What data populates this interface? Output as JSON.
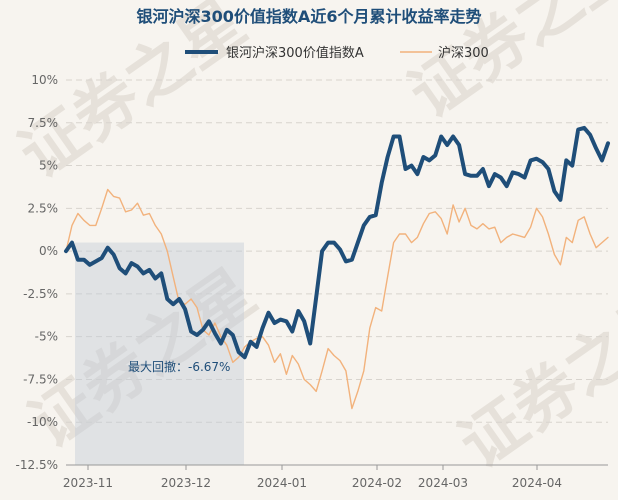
{
  "chart_data": {
    "type": "line",
    "title": "银河沪深300价值指数A近6个月累计收益率走势",
    "watermark": "证券之星",
    "x_tick_labels": [
      "2023-11",
      "2023-12",
      "2024-01",
      "2024-02",
      "2024-03",
      "2024-04"
    ],
    "y_tick_labels": [
      "10%",
      "7.5%",
      "5%",
      "2.5%",
      "0%",
      "-2.5%",
      "-5%",
      "-7.5%",
      "-10%",
      "-12.5%"
    ],
    "ylim": [
      -12.5,
      10
    ],
    "grid": true,
    "legend_position": "top",
    "max_drawdown_label": "最大回撤：-6.67%",
    "series": [
      {
        "name": "银河沪深300价值指数A",
        "color": "#1f4e79",
        "values": [
          0,
          0.5,
          -0.5,
          -0.5,
          -0.8,
          -0.6,
          -0.4,
          0.2,
          -0.2,
          -1.0,
          -1.3,
          -0.7,
          -0.9,
          -1.3,
          -1.1,
          -1.6,
          -1.3,
          -2.8,
          -3.1,
          -2.8,
          -3.4,
          -4.7,
          -4.9,
          -4.6,
          -4.1,
          -4.8,
          -5.4,
          -4.6,
          -4.9,
          -5.9,
          -6.2,
          -5.3,
          -5.6,
          -4.5,
          -3.6,
          -4.2,
          -4.0,
          -4.1,
          -4.7,
          -3.5,
          -4.1,
          -5.4,
          -2.7,
          0.0,
          0.5,
          0.5,
          0.1,
          -0.6,
          -0.5,
          0.5,
          1.5,
          2.0,
          2.1,
          4.0,
          5.5,
          6.7,
          6.7,
          4.8,
          5.0,
          4.5,
          5.5,
          5.3,
          5.6,
          6.7,
          6.2,
          6.7,
          6.2,
          4.5,
          4.4,
          4.4,
          4.8,
          3.8,
          4.5,
          4.3,
          3.8,
          4.6,
          4.5,
          4.3,
          5.3,
          5.4,
          5.2,
          4.8,
          3.5,
          3.0,
          5.3,
          5.0,
          7.1,
          7.2,
          6.8,
          6.0,
          5.3,
          6.3
        ]
      },
      {
        "name": "沪深300",
        "color": "#f2b27c",
        "values": [
          0,
          1.5,
          2.2,
          1.8,
          1.5,
          1.5,
          2.5,
          3.6,
          3.2,
          3.1,
          2.3,
          2.4,
          2.8,
          2.1,
          2.2,
          1.5,
          1.0,
          0.0,
          -1.5,
          -3.0,
          -3.1,
          -2.8,
          -3.3,
          -4.6,
          -4.9,
          -4.2,
          -5.0,
          -5.5,
          -6.5,
          -6.2,
          -5.6,
          -5.3,
          -5.1,
          -5.0,
          -5.5,
          -6.5,
          -6.0,
          -7.2,
          -6.1,
          -6.6,
          -7.5,
          -7.8,
          -8.2,
          -7.0,
          -5.7,
          -6.1,
          -6.4,
          -7.0,
          -9.2,
          -8.2,
          -7.0,
          -4.5,
          -3.3,
          -3.5,
          -1.5,
          0.5,
          1.0,
          1.0,
          0.5,
          0.8,
          1.6,
          2.2,
          2.3,
          1.9,
          1.0,
          2.7,
          1.7,
          2.5,
          1.5,
          1.3,
          1.6,
          1.3,
          1.4,
          0.5,
          0.8,
          1.0,
          0.9,
          0.8,
          1.4,
          2.5,
          2.0,
          1.0,
          -0.2,
          -0.8,
          0.8,
          0.5,
          1.8,
          2.0,
          1.0,
          0.2,
          0.5,
          0.8
        ]
      }
    ]
  }
}
